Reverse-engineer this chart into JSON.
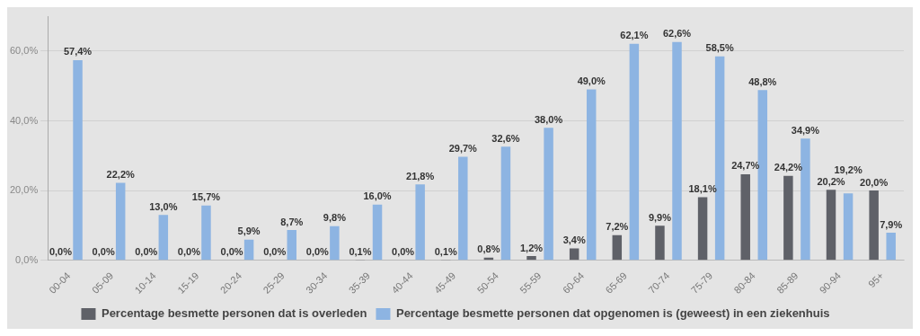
{
  "chart_data": {
    "type": "bar",
    "categories": [
      "00-04",
      "05-09",
      "10-14",
      "15-19",
      "20-24",
      "25-29",
      "30-34",
      "35-39",
      "40-44",
      "45-49",
      "50-54",
      "55-59",
      "60-64",
      "65-69",
      "70-74",
      "75-79",
      "80-84",
      "85-89",
      "90-94",
      "95+"
    ],
    "series": [
      {
        "name": "Percentage besmette personen dat is overleden",
        "color": "#5f6168",
        "values": [
          0,
          0,
          0,
          0,
          0,
          0,
          0,
          0.1,
          0,
          0.1,
          0.8,
          1.2,
          3.4,
          7.2,
          9.9,
          18.1,
          24.7,
          24.2,
          20.2,
          20.0
        ],
        "value_labels": [
          "0,0%",
          "0,0%",
          "0,0%",
          "0,0%",
          "0,0%",
          "0,0%",
          "0,0%",
          "0,1%",
          "0,0%",
          "0,1%",
          "0,8%",
          "1,2%",
          "3,4%",
          "7,2%",
          "9,9%",
          "18,1%",
          "24,7%",
          "24,2%",
          "20,2%",
          "20,0%"
        ]
      },
      {
        "name": "Percentage besmette personen dat opgenomen is (geweest) in een ziekenhuis",
        "color": "#8db4e2",
        "values": [
          57.4,
          22.2,
          13.0,
          15.7,
          5.9,
          8.7,
          9.8,
          16.0,
          21.8,
          29.7,
          32.6,
          38.0,
          49.0,
          62.1,
          62.6,
          58.5,
          48.8,
          34.9,
          19.2,
          7.9
        ],
        "value_labels": [
          "57,4%",
          "22,2%",
          "13,0%",
          "15,7%",
          "5,9%",
          "8,7%",
          "9,8%",
          "16,0%",
          "21,8%",
          "29,7%",
          "32,6%",
          "38,0%",
          "49,0%",
          "62,1%",
          "62,6%",
          "58,5%",
          "48,8%",
          "34,9%",
          "19,2%",
          "7,9%"
        ]
      }
    ],
    "ylim": [
      0,
      70
    ],
    "yticks": [
      {
        "value": 0,
        "label": "0,0%"
      },
      {
        "value": 20,
        "label": "20,0%"
      },
      {
        "value": 40,
        "label": "40,0%"
      },
      {
        "value": 60,
        "label": "60,0%"
      }
    ],
    "grid": "y",
    "legend": "bottom"
  }
}
